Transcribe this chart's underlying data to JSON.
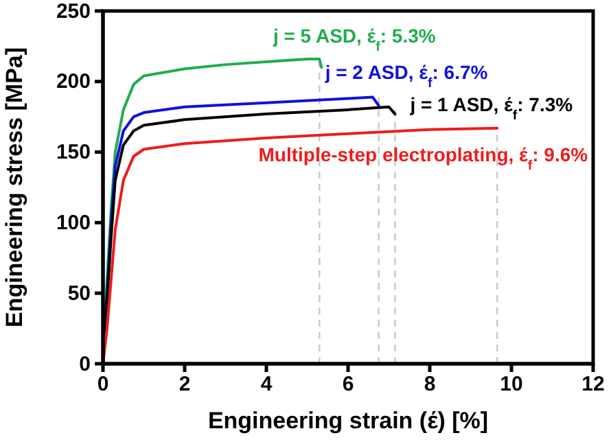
{
  "chart_data": {
    "type": "line",
    "xlabel": "Engineering strain (έ) [%]",
    "ylabel": "Engineering stress [MPa]",
    "xlim": [
      0,
      12
    ],
    "xticks": [
      0,
      2,
      4,
      6,
      8,
      10,
      12
    ],
    "ylim": [
      0,
      250
    ],
    "yticks": [
      0,
      50,
      100,
      150,
      200,
      250
    ],
    "grid": false,
    "marker": "none",
    "line_style": "solid",
    "series": [
      {
        "name": "j = 5 ASD, έ$_{f}$: 5.3%",
        "color": "#1fae4b",
        "x": [
          0,
          0.1,
          0.2,
          0.3,
          0.5,
          0.75,
          1,
          2,
          3,
          4,
          5,
          5.3,
          5.35
        ],
        "values": [
          0,
          60,
          110,
          150,
          180,
          198,
          204,
          209,
          212,
          214,
          216,
          216,
          210
        ]
      },
      {
        "name": "j = 2 ASD, έ$_{f}$: 6.7%",
        "color": "#1010e0",
        "x": [
          0,
          0.1,
          0.2,
          0.3,
          0.5,
          0.75,
          1,
          2,
          4,
          6,
          6.6,
          6.75
        ],
        "values": [
          0,
          50,
          100,
          140,
          165,
          175,
          178,
          182,
          185,
          188,
          189,
          183
        ]
      },
      {
        "name": "j = 1 ASD, έ$_{f}$: 7.3%",
        "color": "#000000",
        "x": [
          0,
          0.1,
          0.2,
          0.3,
          0.5,
          0.75,
          1,
          2,
          4,
          6,
          7,
          7.15
        ],
        "values": [
          0,
          45,
          90,
          130,
          155,
          165,
          169,
          173,
          177,
          180,
          182,
          177
        ]
      },
      {
        "name": "Multiple-step electroplating, έ$_{f}$: 9.6%",
        "color": "#ee1c1c",
        "x": [
          0,
          0.1,
          0.2,
          0.3,
          0.5,
          0.75,
          1,
          2,
          4,
          6,
          8,
          9.65
        ],
        "values": [
          0,
          25,
          60,
          95,
          130,
          147,
          152,
          156,
          160,
          163,
          166,
          167
        ]
      }
    ],
    "ref_lines": [
      {
        "axis": "x",
        "value": 5.3,
        "color": "#c8c8c8",
        "line_style": "dashed"
      },
      {
        "axis": "x",
        "value": 6.75,
        "color": "#c8c8c8",
        "line_style": "dashed"
      },
      {
        "axis": "x",
        "value": 7.15,
        "color": "#c8c8c8",
        "line_style": "dashed"
      },
      {
        "axis": "x",
        "value": 9.65,
        "color": "#c8c8c8",
        "line_style": "dashed"
      }
    ]
  }
}
